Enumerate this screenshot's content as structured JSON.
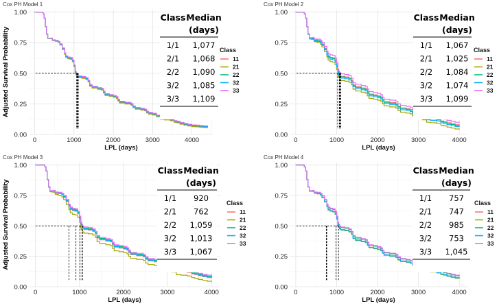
{
  "chart_data": [
    {
      "type": "line",
      "title": "Cox PH Model 1",
      "xlabel": "LPL (days)",
      "ylabel": "Adjusted Survival Probability",
      "xlim": [
        -150,
        4550
      ],
      "ylim": [
        0,
        1.02
      ],
      "xticks": [
        0,
        1000,
        2000,
        3000,
        4000
      ],
      "xtick_labels": [
        "0",
        "1000",
        "2000",
        "3000",
        "4000"
      ],
      "yticks": [
        0,
        0.25,
        0.5,
        0.75,
        1.0
      ],
      "ytick_labels": [
        "0.00",
        "0.25",
        "0.50",
        "0.75",
        "1.00"
      ],
      "x_end": 4400,
      "legend": {
        "title": "Class",
        "items": [
          "11",
          "21",
          "22",
          "32",
          "33"
        ]
      },
      "series": [
        {
          "name": "11",
          "color": "#f8766d",
          "median": 1077,
          "offset": 0.0
        },
        {
          "name": "21",
          "color": "#a3a500",
          "median": 1068,
          "offset": -0.006
        },
        {
          "name": "22",
          "color": "#00bf7d",
          "median": 1090,
          "offset": 0.003
        },
        {
          "name": "32",
          "color": "#00b0f6",
          "median": 1085,
          "offset": 0.002
        },
        {
          "name": "33",
          "color": "#e76bf3",
          "median": 1109,
          "offset": 0.008
        }
      ],
      "table": {
        "header": [
          "Class",
          "Median"
        ],
        "subheader": "(days)",
        "rows": [
          [
            "1/1",
            "1,077"
          ],
          [
            "2/1",
            "1,068"
          ],
          [
            "2/2",
            "1,090"
          ],
          [
            "3/2",
            "1,085"
          ],
          [
            "3/3",
            "1,109"
          ]
        ]
      }
    },
    {
      "type": "line",
      "title": "Cox PH Model 2",
      "xlabel": "LPL (days)",
      "ylabel": "Adjusted Survival Probability",
      "xlim": [
        -150,
        4200
      ],
      "ylim": [
        0,
        1.02
      ],
      "xticks": [
        0,
        1000,
        2000,
        3000,
        4000
      ],
      "xtick_labels": [
        "0",
        "1000",
        "2000",
        "3000",
        "4000"
      ],
      "yticks": [
        0,
        0.25,
        0.5,
        0.75,
        1.0
      ],
      "ytick_labels": [
        "0.00",
        "0.25",
        "0.50",
        "0.75",
        "1.00"
      ],
      "x_end": 4000,
      "legend": {
        "title": "Class",
        "items": [
          "11",
          "21",
          "22",
          "32",
          "33"
        ]
      },
      "series": [
        {
          "name": "11",
          "color": "#f8766d",
          "median": 1067,
          "offset": 0.005
        },
        {
          "name": "21",
          "color": "#a3a500",
          "median": 1025,
          "offset": -0.03
        },
        {
          "name": "22",
          "color": "#00bf7d",
          "median": 1084,
          "offset": 0.0
        },
        {
          "name": "32",
          "color": "#00b0f6",
          "median": 1074,
          "offset": -0.01
        },
        {
          "name": "33",
          "color": "#e76bf3",
          "median": 1099,
          "offset": 0.025
        }
      ],
      "table": {
        "header": [
          "Class",
          "Median"
        ],
        "subheader": "(days)",
        "rows": [
          [
            "1/1",
            "1,067"
          ],
          [
            "2/1",
            "1,025"
          ],
          [
            "2/2",
            "1,084"
          ],
          [
            "3/2",
            "1,074"
          ],
          [
            "3/3",
            "1,099"
          ]
        ]
      }
    },
    {
      "type": "line",
      "title": "Cox PH Model 3",
      "xlabel": "LPL (days)",
      "ylabel": "Adjusted Survival Probability",
      "xlim": [
        -150,
        4200
      ],
      "ylim": [
        0,
        1.02
      ],
      "xticks": [
        0,
        1000,
        2000,
        3000,
        4000
      ],
      "xtick_labels": [
        "0",
        "1000",
        "2000",
        "3000",
        "4000"
      ],
      "yticks": [
        0,
        0.25,
        0.5,
        0.75,
        1.0
      ],
      "ytick_labels": [
        "0.00",
        "0.25",
        "0.50",
        "0.75",
        "1.00"
      ],
      "x_end": 4000,
      "legend": {
        "title": "Class",
        "items": [
          "11",
          "21",
          "22",
          "32",
          "33"
        ]
      },
      "series": [
        {
          "name": "11",
          "color": "#f8766d",
          "median": 920,
          "offset": 0.0
        },
        {
          "name": "21",
          "color": "#a3a500",
          "median": 762,
          "offset": -0.03
        },
        {
          "name": "22",
          "color": "#00bf7d",
          "median": 1059,
          "offset": 0.012
        },
        {
          "name": "32",
          "color": "#00b0f6",
          "median": 1013,
          "offset": 0.005
        },
        {
          "name": "33",
          "color": "#e76bf3",
          "median": 1067,
          "offset": 0.02
        }
      ],
      "table": {
        "header": [
          "Class",
          "Median"
        ],
        "subheader": "(days)",
        "rows": [
          [
            "1/1",
            "920"
          ],
          [
            "2/1",
            "762"
          ],
          [
            "2/2",
            "1,059"
          ],
          [
            "3/2",
            "1,013"
          ],
          [
            "3/3",
            "1,067"
          ]
        ]
      }
    },
    {
      "type": "line",
      "title": "Cox PH Model 4",
      "xlabel": "LPL (days)",
      "ylabel": "Adjusted Survival Probability",
      "xlim": [
        -150,
        4200
      ],
      "ylim": [
        0,
        1.02
      ],
      "xticks": [
        0,
        1000,
        2000,
        3000,
        4000
      ],
      "xtick_labels": [
        "0",
        "1000",
        "2000",
        "3000",
        "4000"
      ],
      "yticks": [
        0,
        0.25,
        0.5,
        0.75,
        1.0
      ],
      "ytick_labels": [
        "0.00",
        "0.25",
        "0.50",
        "0.75",
        "1.00"
      ],
      "x_end": 4000,
      "legend": {
        "title": "Class",
        "items": [
          "11",
          "21",
          "22",
          "32",
          "33"
        ]
      },
      "series": [
        {
          "name": "11",
          "color": "#f8766d",
          "median": 757,
          "offset": 0.0
        },
        {
          "name": "21",
          "color": "#a3a500",
          "median": 747,
          "offset": -0.005
        },
        {
          "name": "22",
          "color": "#00bf7d",
          "median": 985,
          "offset": 0.015
        },
        {
          "name": "32",
          "color": "#00b0f6",
          "median": 753,
          "offset": -0.002
        },
        {
          "name": "33",
          "color": "#e76bf3",
          "median": 1045,
          "offset": 0.02
        }
      ],
      "table": {
        "header": [
          "Class",
          "Median"
        ],
        "subheader": "(days)",
        "rows": [
          [
            "1/1",
            "757"
          ],
          [
            "2/1",
            "747"
          ],
          [
            "2/2",
            "985"
          ],
          [
            "3/2",
            "753"
          ],
          [
            "3/3",
            "1,045"
          ]
        ]
      }
    }
  ]
}
